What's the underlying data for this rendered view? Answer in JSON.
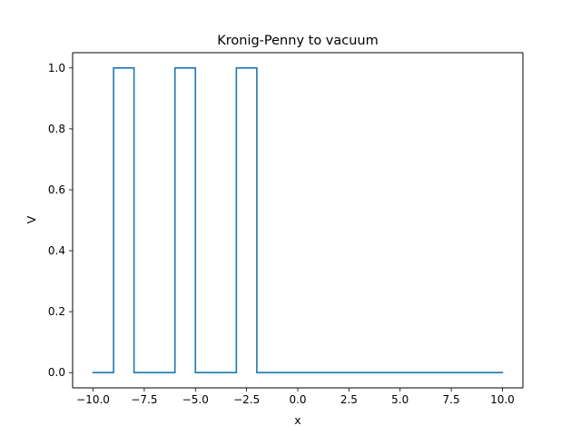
{
  "chart_data": {
    "type": "line",
    "title": "Kronig-Penny to vacuum",
    "xlabel": "x",
    "ylabel": "V",
    "xlim": [
      -11,
      11
    ],
    "ylim": [
      -0.05,
      1.05
    ],
    "xticks": [
      -10.0,
      -7.5,
      -5.0,
      -2.5,
      0.0,
      2.5,
      5.0,
      7.5,
      10.0
    ],
    "xtick_labels": [
      "−10.0",
      "−7.5",
      "−5.0",
      "−2.5",
      "0.0",
      "2.5",
      "5.0",
      "7.5",
      "10.0"
    ],
    "yticks": [
      0.0,
      0.2,
      0.4,
      0.6,
      0.8,
      1.0
    ],
    "ytick_labels": [
      "0.0",
      "0.2",
      "0.4",
      "0.6",
      "0.8",
      "1.0"
    ],
    "grid": false,
    "series": [
      {
        "color": "#1f77b4",
        "x": [
          -10,
          -9,
          -9,
          -8,
          -8,
          -6,
          -6,
          -5,
          -5,
          -3,
          -3,
          -2,
          -2,
          10
        ],
        "y": [
          0,
          0,
          1,
          1,
          0,
          0,
          1,
          1,
          0,
          0,
          1,
          1,
          0,
          0
        ]
      }
    ]
  }
}
